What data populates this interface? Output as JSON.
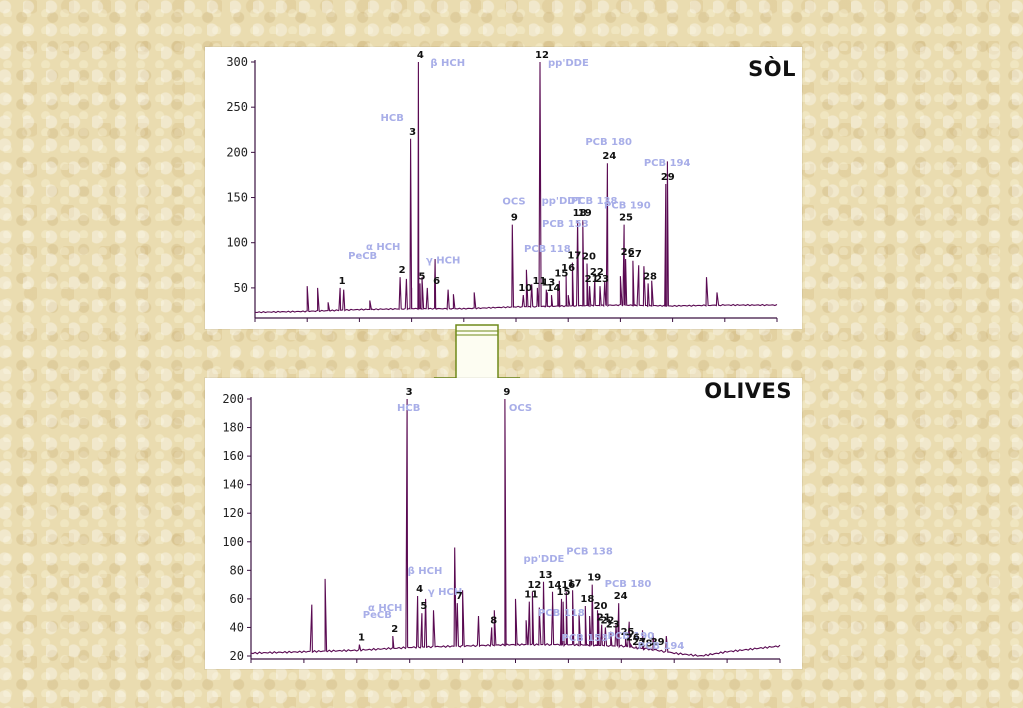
{
  "colors": {
    "trace": "#5a0a52",
    "axis": "#3a1040",
    "label_blue": "#a8aee8",
    "label_black": "#111111",
    "arrow_fill": "#fdfdf2",
    "arrow_stroke": "#6e8a1a"
  },
  "chart_data": [
    {
      "type": "line",
      "title": "SÒL",
      "ylim": [
        20,
        300
      ],
      "yticks": [
        50,
        100,
        150,
        200,
        250,
        300
      ],
      "xlim": [
        0,
        1000
      ],
      "baseline": [
        [
          0,
          23
        ],
        [
          100,
          24
        ],
        [
          200,
          26
        ],
        [
          300,
          27
        ],
        [
          400,
          27
        ],
        [
          500,
          29
        ],
        [
          600,
          30
        ],
        [
          700,
          31
        ],
        [
          800,
          30
        ],
        [
          900,
          31
        ],
        [
          1000,
          31
        ]
      ],
      "peaks": [
        [
          100,
          52,
          3
        ],
        [
          120,
          50,
          3
        ],
        [
          140,
          34,
          3
        ],
        [
          170,
          48,
          3
        ],
        [
          220,
          36,
          3
        ],
        [
          290,
          60,
          3
        ],
        [
          300,
          50,
          3
        ],
        [
          320,
          62,
          3
        ],
        [
          330,
          50,
          3
        ],
        [
          345,
          82,
          3
        ],
        [
          370,
          48,
          3
        ],
        [
          380,
          43,
          3
        ],
        [
          420,
          45,
          3
        ],
        [
          520,
          70,
          3
        ],
        [
          530,
          54,
          3
        ],
        [
          560,
          45,
          3
        ],
        [
          580,
          50,
          3
        ],
        [
          600,
          42,
          3
        ],
        [
          650,
          48,
          3
        ],
        [
          670,
          57,
          3
        ],
        [
          700,
          63,
          3
        ],
        [
          725,
          60,
          3
        ],
        [
          735,
          75,
          3
        ],
        [
          745,
          74,
          3
        ],
        [
          760,
          58,
          3
        ],
        [
          790,
          190,
          3
        ],
        [
          865,
          62,
          3
        ],
        [
          885,
          45,
          3
        ]
      ],
      "peak_labels": [
        {
          "n": "1",
          "x": 163,
          "y": 50,
          "name": ""
        },
        {
          "n": "2",
          "x": 278,
          "y": 62,
          "name": "PeCB"
        },
        {
          "n": "3",
          "x": 298,
          "y": 215,
          "name": "HCB"
        },
        {
          "n": "4",
          "x": 313,
          "y": 300,
          "name": "β HCH"
        },
        {
          "n": "5",
          "x": 316,
          "y": 55,
          "name": "γ HCH"
        },
        {
          "n": "6",
          "x": 344,
          "y": 50,
          "name": ""
        },
        {
          "n": "9",
          "x": 493,
          "y": 120,
          "name": "OCS"
        },
        {
          "n": "10",
          "x": 514,
          "y": 42,
          "name": ""
        },
        {
          "n": "11",
          "x": 541,
          "y": 50,
          "name": ""
        },
        {
          "n": "12",
          "x": 546,
          "y": 300,
          "name": "pp'DDE"
        },
        {
          "n": "13",
          "x": 558,
          "y": 48,
          "name": ""
        },
        {
          "n": "14",
          "x": 568,
          "y": 42,
          "name": ""
        },
        {
          "n": "15",
          "x": 583,
          "y": 58,
          "name": ""
        },
        {
          "n": "16",
          "x": 596,
          "y": 64,
          "name": ""
        },
        {
          "n": "17",
          "x": 608,
          "y": 78,
          "name": ""
        },
        {
          "n": "18",
          "x": 618,
          "y": 125,
          "name": "pp'DDT"
        },
        {
          "n": "19",
          "x": 628,
          "y": 125,
          "name": "PCB 138"
        },
        {
          "n": "20",
          "x": 636,
          "y": 77,
          "name": ""
        },
        {
          "n": "21",
          "x": 641,
          "y": 52,
          "name": ""
        },
        {
          "n": "22",
          "x": 651,
          "y": 60,
          "name": ""
        },
        {
          "n": "23",
          "x": 661,
          "y": 52,
          "name": ""
        },
        {
          "n": "24",
          "x": 675,
          "y": 188,
          "name": "PCB 180"
        },
        {
          "n": "25",
          "x": 707,
          "y": 120,
          "name": "PCB 190"
        },
        {
          "n": "26",
          "x": 710,
          "y": 82,
          "name": ""
        },
        {
          "n": "27",
          "x": 724,
          "y": 80,
          "name": ""
        },
        {
          "n": "28",
          "x": 753,
          "y": 55,
          "name": ""
        },
        {
          "n": "29",
          "x": 787,
          "y": 165,
          "name": "PCB 194"
        }
      ],
      "floating_labels": [
        "α HCH",
        "PCB 153",
        "PCB 118"
      ]
    },
    {
      "type": "line",
      "title": "OLIVES",
      "ylim": [
        20,
        200
      ],
      "yticks": [
        20,
        40,
        60,
        80,
        100,
        120,
        140,
        160,
        180,
        200
      ],
      "xlim": [
        0,
        1000
      ],
      "baseline": [
        [
          0,
          22
        ],
        [
          100,
          23
        ],
        [
          200,
          24
        ],
        [
          300,
          26
        ],
        [
          400,
          27
        ],
        [
          500,
          28
        ],
        [
          600,
          28
        ],
        [
          700,
          27
        ],
        [
          750,
          25
        ],
        [
          800,
          22
        ],
        [
          850,
          20
        ],
        [
          900,
          23
        ],
        [
          950,
          25
        ],
        [
          1000,
          27
        ]
      ],
      "peaks": [
        [
          115,
          56,
          3
        ],
        [
          140,
          74,
          3
        ],
        [
          330,
          60,
          3
        ],
        [
          345,
          52,
          3
        ],
        [
          385,
          96,
          3
        ],
        [
          400,
          66,
          3
        ],
        [
          430,
          48,
          3
        ],
        [
          460,
          52,
          3
        ],
        [
          500,
          60,
          3
        ],
        [
          520,
          45,
          3
        ],
        [
          545,
          54,
          3
        ],
        [
          570,
          56,
          3
        ],
        [
          590,
          58,
          3
        ],
        [
          620,
          50,
          3
        ],
        [
          640,
          48,
          3
        ],
        [
          655,
          52,
          3
        ],
        [
          690,
          42,
          3
        ],
        [
          715,
          44,
          3
        ],
        [
          740,
          38,
          3
        ],
        [
          760,
          36,
          3
        ],
        [
          785,
          34,
          3
        ]
      ],
      "peak_labels": [
        {
          "n": "1",
          "x": 205,
          "y": 28,
          "name": ""
        },
        {
          "n": "2",
          "x": 268,
          "y": 34,
          "name": "PeCB"
        },
        {
          "n": "3",
          "x": 295,
          "y": 200,
          "name": "HCB"
        },
        {
          "n": "4",
          "x": 315,
          "y": 62,
          "name": "β HCH"
        },
        {
          "n": "5",
          "x": 323,
          "y": 50,
          "name": "γ HCH"
        },
        {
          "n": "7",
          "x": 390,
          "y": 57,
          "name": ""
        },
        {
          "n": "8",
          "x": 455,
          "y": 40,
          "name": ""
        },
        {
          "n": "9",
          "x": 480,
          "y": 200,
          "name": "OCS"
        },
        {
          "n": "11",
          "x": 526,
          "y": 58,
          "name": ""
        },
        {
          "n": "12",
          "x": 532,
          "y": 65,
          "name": ""
        },
        {
          "n": "13",
          "x": 553,
          "y": 72,
          "name": "pp'DDE"
        },
        {
          "n": "14",
          "x": 570,
          "y": 65,
          "name": ""
        },
        {
          "n": "15",
          "x": 587,
          "y": 60,
          "name": "PCB 153"
        },
        {
          "n": "16",
          "x": 596,
          "y": 65,
          "name": ""
        },
        {
          "n": "17",
          "x": 608,
          "y": 66,
          "name": ""
        },
        {
          "n": "18",
          "x": 632,
          "y": 55,
          "name": ""
        },
        {
          "n": "19",
          "x": 645,
          "y": 70,
          "name": "PCB 138"
        },
        {
          "n": "20",
          "x": 657,
          "y": 50,
          "name": ""
        },
        {
          "n": "21",
          "x": 663,
          "y": 42,
          "name": ""
        },
        {
          "n": "22",
          "x": 670,
          "y": 40,
          "name": ""
        },
        {
          "n": "23",
          "x": 680,
          "y": 37,
          "name": ""
        },
        {
          "n": "24",
          "x": 695,
          "y": 57,
          "name": "PCB 180"
        },
        {
          "n": "25",
          "x": 708,
          "y": 32,
          "name": "PCB 190"
        },
        {
          "n": "26",
          "x": 718,
          "y": 28,
          "name": ""
        },
        {
          "n": "27",
          "x": 730,
          "y": 25,
          "name": ""
        },
        {
          "n": "28",
          "x": 742,
          "y": 24,
          "name": ""
        },
        {
          "n": "29",
          "x": 765,
          "y": 25,
          "name": "PCB 194"
        }
      ],
      "floating_labels": [
        "α HCH",
        "PCB 118"
      ]
    }
  ]
}
